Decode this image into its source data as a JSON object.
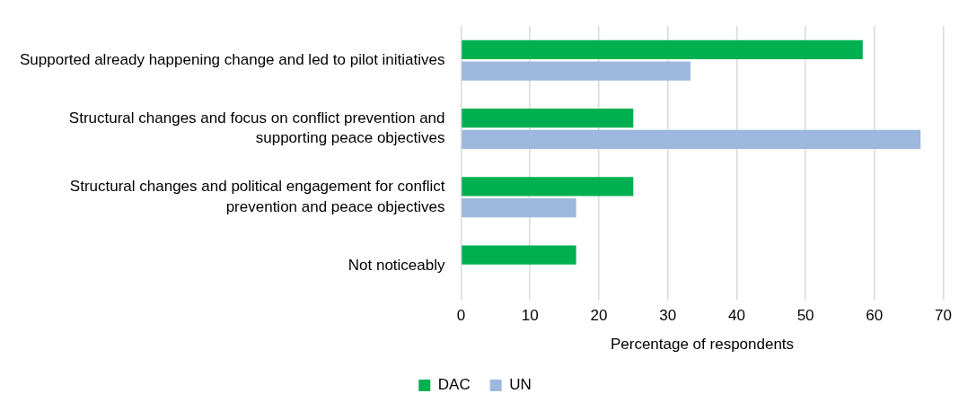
{
  "chart_data": {
    "type": "bar",
    "orientation": "horizontal",
    "xlabel": "Percentage of respondents",
    "categories": [
      "Supported already happening change and led to pilot initiatives",
      "Structural changes and focus on conflict prevention and supporting peace objectives",
      "Structural changes and political engagement for conflict prevention and peace objectives",
      "Not noticeably"
    ],
    "series": [
      {
        "name": "DAC",
        "color": "#00b050",
        "values": [
          58.3,
          25,
          25,
          16.7
        ]
      },
      {
        "name": "UN",
        "color": "#9db8dc",
        "values": [
          33.3,
          66.7,
          16.7,
          0
        ]
      }
    ],
    "xlim": [
      0,
      70
    ],
    "xticks": [
      0,
      10,
      20,
      30,
      40,
      50,
      60,
      70
    ],
    "grid": "x",
    "legend": "bottom"
  }
}
